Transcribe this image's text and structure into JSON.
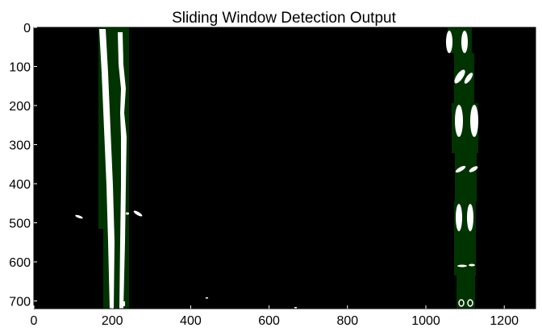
{
  "title": "Sliding Window Detection Output",
  "axes": {
    "x": {
      "ticks": [
        "0",
        "200",
        "400",
        "600",
        "800",
        "1000",
        "1200"
      ],
      "range": [
        0,
        1280
      ]
    },
    "y": {
      "ticks": [
        "0",
        "100",
        "200",
        "300",
        "400",
        "500",
        "600",
        "700"
      ],
      "range": [
        0,
        720
      ],
      "inverted": true
    }
  },
  "colors": {
    "background": "#000000",
    "lane_pixels": "#ffffff",
    "window_fill": "#003300"
  }
}
